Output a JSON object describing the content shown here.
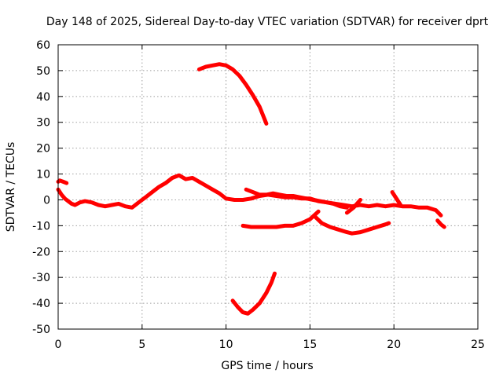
{
  "chart_data": {
    "type": "line",
    "title": "Day 148 of 2025, Sidereal Day-to-day VTEC variation (SDTVAR) for receiver dprt",
    "xlabel": "GPS time / hours",
    "ylabel": "SDTVAR / TECUs",
    "xlim": [
      0,
      25
    ],
    "ylim": [
      -50,
      60
    ],
    "xticks": [
      0,
      5,
      10,
      15,
      20,
      25
    ],
    "yticks": [
      -50,
      -40,
      -30,
      -20,
      -10,
      0,
      10,
      20,
      30,
      40,
      50,
      60
    ],
    "grid": true,
    "series_color": "#ff0000",
    "series": [
      {
        "name": "main-trace",
        "x": [
          0.0,
          0.2,
          0.4,
          0.6,
          0.8,
          1.0,
          1.3,
          1.6,
          2.0,
          2.4,
          2.8,
          3.2,
          3.6,
          4.0,
          4.4,
          4.8,
          5.2,
          5.6,
          6.0,
          6.4,
          6.8,
          7.2,
          7.6,
          8.0,
          8.4,
          8.8,
          9.2,
          9.6,
          10.0,
          10.5,
          11.0,
          11.5,
          12.0,
          12.5,
          13.0,
          13.5,
          14.0,
          14.5,
          15.0,
          15.5,
          16.0,
          16.5,
          17.0,
          17.5,
          18.0,
          18.5,
          19.0,
          19.5,
          20.0,
          20.5,
          21.0,
          21.5,
          22.0,
          22.5,
          22.8
        ],
        "y": [
          4.0,
          2.0,
          0.5,
          -0.5,
          -1.5,
          -2.0,
          -1.0,
          -0.5,
          -1.0,
          -2.0,
          -2.5,
          -2.0,
          -1.5,
          -2.5,
          -3.0,
          -1.0,
          1.0,
          3.0,
          5.0,
          6.5,
          8.5,
          9.5,
          8.0,
          8.5,
          7.0,
          5.5,
          4.0,
          2.5,
          0.5,
          0.0,
          0.0,
          0.5,
          1.5,
          2.0,
          1.5,
          1.0,
          1.0,
          0.5,
          0.5,
          -0.5,
          -1.0,
          -1.5,
          -2.0,
          -2.5,
          -2.0,
          -2.5,
          -2.0,
          -2.5,
          -2.0,
          -2.5,
          -2.5,
          -3.0,
          -3.0,
          -4.0,
          -6.0
        ]
      },
      {
        "name": "early-segment",
        "x": [
          0.0,
          0.1,
          0.3,
          0.5
        ],
        "y": [
          7.0,
          7.5,
          7.0,
          6.5
        ]
      },
      {
        "name": "upper-arc",
        "x": [
          8.4,
          8.8,
          9.2,
          9.6,
          10.0,
          10.4,
          10.8,
          11.2,
          11.6,
          12.0,
          12.4
        ],
        "y": [
          50.5,
          51.5,
          52.0,
          52.5,
          52.0,
          50.5,
          48.0,
          44.5,
          40.5,
          36.0,
          29.5
        ]
      },
      {
        "name": "upper-branch",
        "x": [
          11.2,
          11.6,
          12.0,
          12.4,
          12.8,
          13.2,
          13.6,
          14.0,
          14.4,
          14.8,
          15.2,
          15.6,
          16.0,
          16.4,
          16.8,
          17.2
        ],
        "y": [
          4.0,
          3.0,
          2.0,
          2.0,
          2.5,
          2.0,
          1.5,
          1.5,
          1.0,
          0.5,
          0.0,
          -0.5,
          -1.0,
          -1.5,
          -2.5,
          -3.0
        ]
      },
      {
        "name": "middle-arc",
        "x": [
          11.0,
          11.5,
          12.0,
          12.5,
          13.0,
          13.5,
          14.0,
          14.5,
          15.0,
          15.5
        ],
        "y": [
          -10.0,
          -10.5,
          -10.5,
          -10.5,
          -10.5,
          -10.0,
          -10.0,
          -9.0,
          -7.5,
          -4.5
        ]
      },
      {
        "name": "low-arc",
        "x": [
          15.3,
          15.7,
          16.2,
          16.7,
          17.2,
          17.5,
          18.0,
          18.5,
          19.0,
          19.5,
          19.7
        ],
        "y": [
          -6.5,
          -9.0,
          -10.5,
          -11.5,
          -12.5,
          -13.0,
          -12.5,
          -11.5,
          -10.5,
          -9.5,
          -9.0
        ]
      },
      {
        "name": "bottom-arc",
        "x": [
          10.4,
          10.7,
          11.0,
          11.3,
          11.6,
          12.0,
          12.4,
          12.7,
          12.9
        ],
        "y": [
          -39.0,
          -41.5,
          -43.5,
          -44.0,
          -42.5,
          -40.0,
          -36.0,
          -32.0,
          -28.5
        ]
      },
      {
        "name": "tail-drop",
        "x": [
          22.6,
          22.8,
          23.0
        ],
        "y": [
          -8.0,
          -9.5,
          -10.5
        ]
      },
      {
        "name": "spike-19-20",
        "x": [
          19.9,
          20.0,
          20.2,
          20.4
        ],
        "y": [
          3.0,
          2.0,
          0.0,
          -2.0
        ]
      },
      {
        "name": "spike-17-18",
        "x": [
          17.2,
          17.4,
          17.6,
          17.8,
          18.0
        ],
        "y": [
          -5.0,
          -4.0,
          -3.0,
          -1.5,
          0.0
        ]
      }
    ]
  }
}
